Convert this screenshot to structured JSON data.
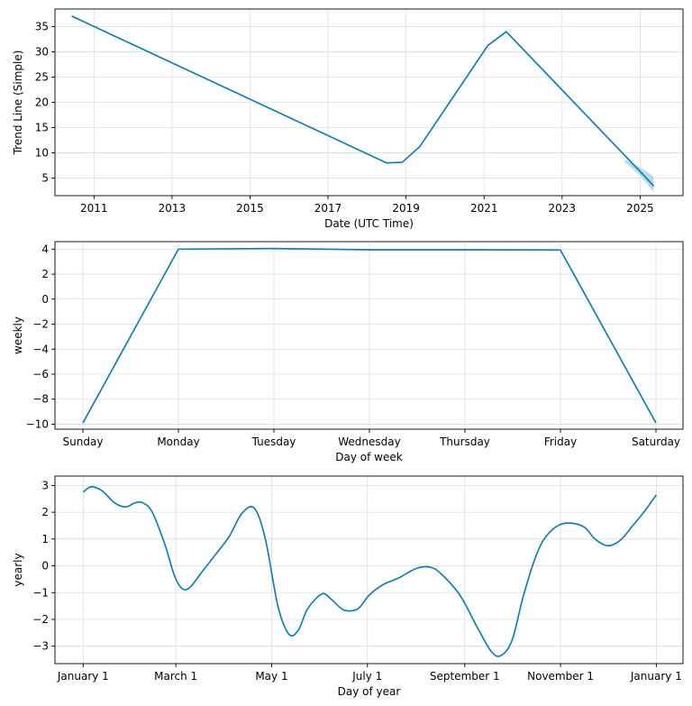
{
  "chart_data": [
    {
      "type": "line",
      "xlabel": "Date (UTC Time)",
      "ylabel": "Trend Line (Simple)",
      "x_ticks": [
        "2011",
        "2013",
        "2015",
        "2017",
        "2019",
        "2021",
        "2023",
        "2025"
      ],
      "x_tick_years": [
        2011,
        2013,
        2015,
        2017,
        2019,
        2021,
        2023,
        2025
      ],
      "xlim": [
        2010.0,
        2026.1
      ],
      "y_ticks": [
        5,
        10,
        15,
        20,
        25,
        30,
        35
      ],
      "ylim": [
        1.5,
        38.5
      ],
      "grid": true,
      "line_color": "#1a7ea8",
      "band_color": "#a8d2ea",
      "series": [
        {
          "x": [
            2010.43,
            2018.5,
            2018.9,
            2019.35,
            2021.1,
            2021.57,
            2025.0,
            2025.35
          ],
          "y": [
            37.1,
            8.0,
            8.1,
            11.2,
            31.3,
            34.0,
            6.3,
            3.4
          ]
        }
      ],
      "band": {
        "x": [
          2024.6,
          2025.0,
          2025.35
        ],
        "lower": [
          8.2,
          5.5,
          2.2
        ],
        "upper": [
          8.7,
          7.1,
          5.3
        ]
      }
    },
    {
      "type": "line",
      "xlabel": "Day of week",
      "ylabel": "weekly",
      "categories": [
        "Sunday",
        "Monday",
        "Tuesday",
        "Wednesday",
        "Thursday",
        "Friday",
        "Saturday"
      ],
      "y_ticks": [
        -10,
        -8,
        -6,
        -4,
        -2,
        0,
        2,
        4
      ],
      "ylim": [
        -10.4,
        4.6
      ],
      "grid": true,
      "line_color": "#1a7ea8",
      "series": [
        {
          "values": [
            -9.9,
            4.0,
            4.05,
            3.95,
            3.95,
            3.93,
            -9.9
          ]
        }
      ]
    },
    {
      "type": "line",
      "xlabel": "Day of year",
      "ylabel": "yearly",
      "x_ticks": [
        "January 1",
        "March 1",
        "May 1",
        "July 1",
        "September 1",
        "November 1",
        "January 1"
      ],
      "x_tick_days": [
        0,
        59,
        120,
        181,
        243,
        304,
        365
      ],
      "xlim": [
        -18,
        382
      ],
      "y_ticks": [
        -3,
        -2,
        -1,
        0,
        1,
        2,
        3
      ],
      "ylim": [
        -3.65,
        3.35
      ],
      "grid": true,
      "line_color": "#1a7ea8",
      "series": [
        {
          "x": [
            0,
            5,
            12,
            20,
            27,
            33,
            38,
            44,
            52,
            58,
            63,
            68,
            76,
            84,
            93,
            101,
            109,
            116,
            124,
            131,
            137,
            143,
            152,
            158,
            166,
            175,
            182,
            191,
            201,
            212,
            221,
            228,
            240,
            251,
            260,
            266,
            273,
            280,
            287,
            293,
            301,
            309,
            319,
            326,
            334,
            342,
            350,
            357,
            365
          ],
          "y": [
            2.75,
            2.95,
            2.8,
            2.35,
            2.2,
            2.35,
            2.35,
            2.0,
            0.8,
            -0.35,
            -0.85,
            -0.8,
            -0.2,
            0.4,
            1.1,
            1.95,
            2.15,
            1.0,
            -1.5,
            -2.55,
            -2.4,
            -1.6,
            -1.05,
            -1.25,
            -1.65,
            -1.6,
            -1.1,
            -0.7,
            -0.45,
            -0.1,
            -0.05,
            -0.3,
            -1.1,
            -2.3,
            -3.2,
            -3.35,
            -2.8,
            -1.2,
            0.15,
            0.95,
            1.45,
            1.6,
            1.45,
            1.0,
            0.75,
            0.95,
            1.5,
            2.0,
            2.65
          ]
        }
      ]
    }
  ]
}
